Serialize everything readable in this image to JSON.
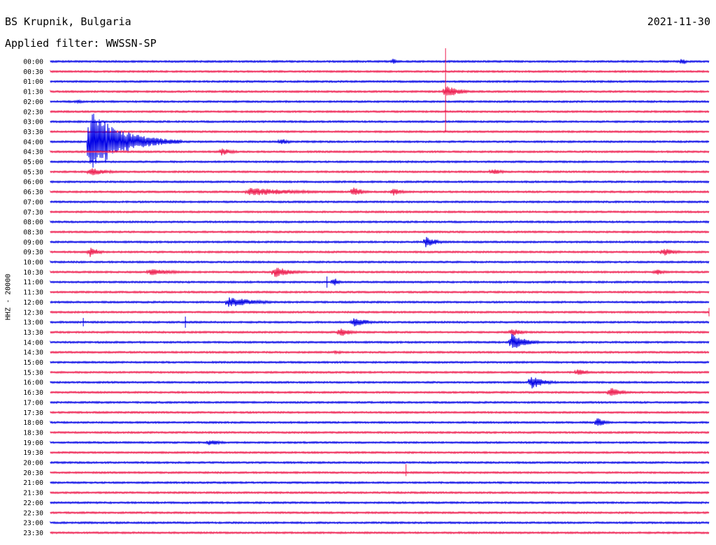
{
  "header": {
    "station": "BS Krupnik, Bulgaria",
    "date": "2021-11-30",
    "filter": "Applied filter: WWSSN-SP"
  },
  "channel_label": "HHZ - 20000",
  "chart_data": {
    "type": "line",
    "title": "BS Krupnik, Bulgaria",
    "colors": [
      "#0000e6",
      "#ee1c4e"
    ],
    "rows": [
      "00:00",
      "00:30",
      "01:00",
      "01:30",
      "02:00",
      "02:30",
      "03:00",
      "03:30",
      "04:00",
      "04:30",
      "05:00",
      "05:30",
      "06:00",
      "06:30",
      "07:00",
      "07:30",
      "08:00",
      "08:30",
      "09:00",
      "09:30",
      "10:00",
      "10:30",
      "11:00",
      "11:30",
      "12:00",
      "12:30",
      "13:00",
      "13:30",
      "14:00",
      "14:30",
      "15:00",
      "15:30",
      "16:00",
      "16:30",
      "17:00",
      "17:30",
      "18:00",
      "18:30",
      "19:00",
      "19:30",
      "20:00",
      "20:30",
      "21:00",
      "21:30",
      "22:00",
      "22:30",
      "23:00",
      "23:30"
    ],
    "events": [
      {
        "row": 0,
        "x": 0.52,
        "amp": 5,
        "w": 0.02
      },
      {
        "row": 0,
        "x": 0.96,
        "amp": 7,
        "w": 0.012
      },
      {
        "row": 3,
        "x": 0.6,
        "amp": 10,
        "w": 0.06
      },
      {
        "row": 4,
        "x": 0.04,
        "amp": 3,
        "w": 0.04
      },
      {
        "row": 8,
        "x": 0.06,
        "amp": 48,
        "w": 0.14
      },
      {
        "row": 8,
        "x": 0.35,
        "amp": 5,
        "w": 0.04
      },
      {
        "row": 9,
        "x": 0.26,
        "amp": 6,
        "w": 0.05
      },
      {
        "row": 11,
        "x": 0.06,
        "amp": 6,
        "w": 0.08
      },
      {
        "row": 11,
        "x": 0.67,
        "amp": 5,
        "w": 0.05
      },
      {
        "row": 13,
        "x": 0.3,
        "amp": 6,
        "w": 0.25
      },
      {
        "row": 13,
        "x": 0.46,
        "amp": 8,
        "w": 0.04
      },
      {
        "row": 13,
        "x": 0.52,
        "amp": 6,
        "w": 0.04
      },
      {
        "row": 18,
        "x": 0.57,
        "amp": 8,
        "w": 0.05
      },
      {
        "row": 19,
        "x": 0.06,
        "amp": 8,
        "w": 0.04
      },
      {
        "row": 19,
        "x": 0.93,
        "amp": 6,
        "w": 0.06
      },
      {
        "row": 21,
        "x": 0.15,
        "amp": 5,
        "w": 0.12
      },
      {
        "row": 21,
        "x": 0.34,
        "amp": 8,
        "w": 0.08
      },
      {
        "row": 21,
        "x": 0.92,
        "amp": 5,
        "w": 0.04
      },
      {
        "row": 22,
        "x": 0.43,
        "amp": 8,
        "w": 0.02
      },
      {
        "row": 24,
        "x": 0.27,
        "amp": 8,
        "w": 0.12
      },
      {
        "row": 26,
        "x": 0.46,
        "amp": 8,
        "w": 0.06
      },
      {
        "row": 27,
        "x": 0.44,
        "amp": 7,
        "w": 0.05
      },
      {
        "row": 27,
        "x": 0.7,
        "amp": 6,
        "w": 0.05
      },
      {
        "row": 28,
        "x": 0.7,
        "amp": 13,
        "w": 0.06
      },
      {
        "row": 29,
        "x": 0.43,
        "amp": 3,
        "w": 0.06
      },
      {
        "row": 31,
        "x": 0.8,
        "amp": 5,
        "w": 0.05
      },
      {
        "row": 32,
        "x": 0.73,
        "amp": 10,
        "w": 0.06
      },
      {
        "row": 33,
        "x": 0.85,
        "amp": 8,
        "w": 0.05
      },
      {
        "row": 36,
        "x": 0.83,
        "amp": 7,
        "w": 0.04
      },
      {
        "row": 38,
        "x": 0.24,
        "amp": 5,
        "w": 0.06
      },
      {
        "row": 41,
        "x": 0.55,
        "amp": 3,
        "w": 0.01
      }
    ],
    "spikes": [
      {
        "row": 3,
        "x": 0.6,
        "up": 62,
        "down": 58
      },
      {
        "row": 26,
        "x": 0.05,
        "up": 6,
        "down": 6
      },
      {
        "row": 26,
        "x": 0.205,
        "up": 8,
        "down": 8
      },
      {
        "row": 41,
        "x": 0.54,
        "up": 12,
        "down": 5
      },
      {
        "row": 22,
        "x": 0.42,
        "up": 8,
        "down": 8
      },
      {
        "row": 25,
        "x": 1.0,
        "up": 6,
        "down": 6
      }
    ]
  }
}
